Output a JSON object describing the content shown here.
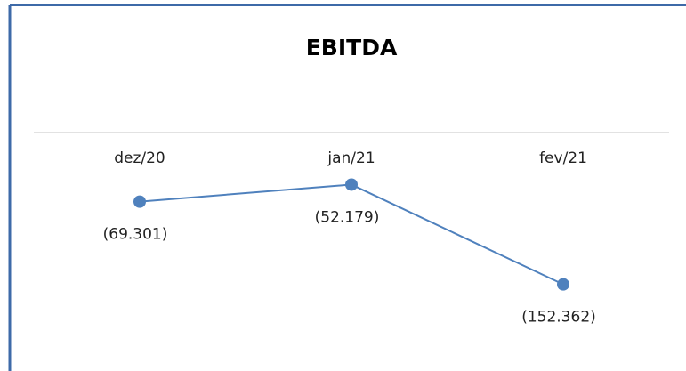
{
  "chart_data": {
    "type": "line",
    "title": "EBITDA",
    "categories": [
      "dez/20",
      "jan/21",
      "fev/21"
    ],
    "series": [
      {
        "name": "EBITDA",
        "color": "#4f81bd",
        "values": [
          -69301,
          -52179,
          -152362
        ],
        "value_labels": [
          "(69.301)",
          "(52.179)",
          "(152.362)"
        ]
      }
    ],
    "ylim": [
      -200000,
      0
    ]
  }
}
